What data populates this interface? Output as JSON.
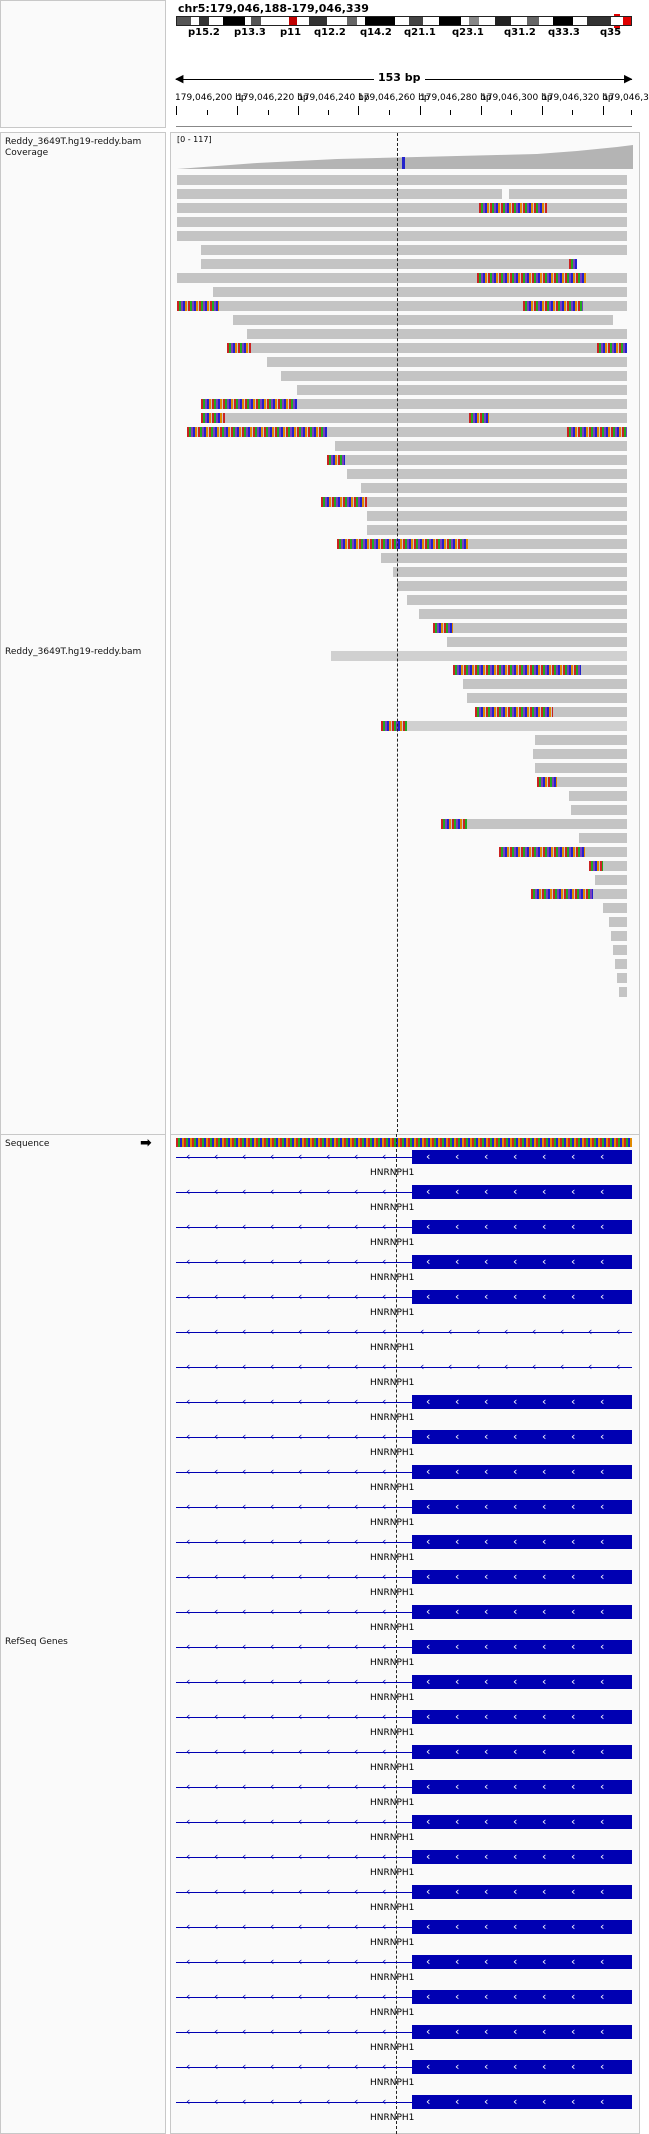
{
  "header": {
    "locus": "chr5:179,046,188-179,046,339",
    "span": "153 bp",
    "bands": [
      "p15.2",
      "p13.3",
      "p11",
      "q12.2",
      "q14.2",
      "q21.1",
      "q23.1",
      "q31.2",
      "q33.3",
      "q35"
    ],
    "ticks": [
      "179,046,200 bp",
      "179,046,220 bp",
      "179,046,240 bp",
      "179,046,260 bp",
      "179,046,280 bp",
      "179,046,300 bp",
      "179,046,320 bp",
      "179,046,3"
    ]
  },
  "tracks": {
    "coverage_name": "Reddy_3649T.hg19-reddy.bam Coverage",
    "coverage_scale": "[0 - 117]",
    "alignment_name": "Reddy_3649T.hg19-reddy.bam",
    "sequence_name": "Sequence",
    "refseq_name": "RefSeq Genes"
  },
  "gene": {
    "name": "HNRNPH1",
    "rows": 28
  },
  "colors": {
    "gene": "#0000b2",
    "read": "#c4c4c4",
    "coverage": "#b4b4b4"
  }
}
